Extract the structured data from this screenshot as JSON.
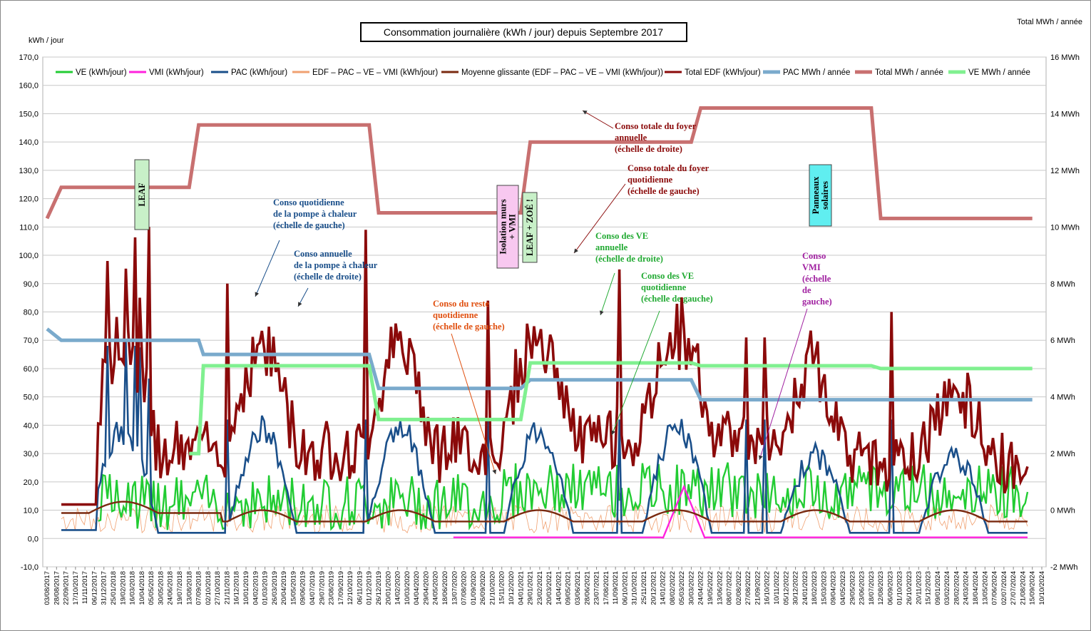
{
  "chart_data": {
    "type": "line",
    "title": "Consommation journalière (kWh / jour) depuis Septembre 2017",
    "ylabel_left": "kWh / jour",
    "ylabel_right": "Total MWh / année",
    "ylim_left": [
      -10,
      170
    ],
    "ylim_right": [
      -2,
      16
    ],
    "yticks_left": [
      "170,0",
      "160,0",
      "150,0",
      "140,0",
      "130,0",
      "120,0",
      "110,0",
      "100,0",
      "90,0",
      "80,0",
      "70,0",
      "60,0",
      "50,0",
      "40,0",
      "30,0",
      "20,0",
      "10,0",
      "0,0",
      "-10,0"
    ],
    "yticks_right": [
      "16 MWh",
      "14 MWh",
      "12 MWh",
      "10 MWh",
      "8 MWh",
      "6 MWh",
      "4 MWh",
      "2 MWh",
      "0 MWh",
      "-2 MWh"
    ],
    "x_dates": [
      "03/08/2017",
      "28/08/2017",
      "22/09/2017",
      "17/10/2017",
      "11/11/2017",
      "06/12/2017",
      "31/12/2017",
      "25/01/2018",
      "19/02/2018",
      "16/03/2018",
      "10/04/2018",
      "05/05/2018",
      "30/05/2018",
      "24/06/2018",
      "19/07/2018",
      "13/08/2018",
      "07/09/2018",
      "02/10/2018",
      "27/10/2018",
      "21/11/2018",
      "16/12/2018",
      "10/01/2019",
      "04/02/2019",
      "01/03/2019",
      "26/03/2019",
      "20/04/2019",
      "15/05/2019",
      "09/06/2019",
      "04/07/2019",
      "29/07/2019",
      "23/08/2019",
      "17/09/2019",
      "12/10/2019",
      "06/11/2019",
      "01/12/2019",
      "26/12/2019",
      "20/01/2020",
      "14/02/2020",
      "10/03/2020",
      "04/04/2020",
      "29/04/2020",
      "24/05/2020",
      "18/06/2020",
      "13/07/2020",
      "07/08/2020",
      "01/09/2020",
      "26/09/2020",
      "21/10/2020",
      "15/11/2020",
      "10/12/2020",
      "04/01/2021",
      "29/01/2021",
      "23/02/2021",
      "20/03/2021",
      "14/04/2021",
      "09/05/2021",
      "03/06/2021",
      "28/06/2021",
      "23/07/2021",
      "17/08/2021",
      "11/09/2021",
      "06/10/2021",
      "31/10/2021",
      "25/11/2021",
      "20/12/2021",
      "14/01/2022",
      "08/02/2022",
      "05/03/2022",
      "30/03/2022",
      "24/04/2022",
      "19/05/2022",
      "13/06/2022",
      "08/07/2022",
      "02/08/2022",
      "27/08/2022",
      "21/09/2022",
      "16/10/2022",
      "10/11/2022",
      "05/12/2022",
      "30/12/2022",
      "24/01/2023",
      "18/02/2023",
      "15/03/2023",
      "09/04/2023",
      "04/05/2023",
      "29/05/2023",
      "23/06/2023",
      "18/07/2023",
      "12/08/2023",
      "06/09/2023",
      "01/10/2023",
      "26/10/2023",
      "20/11/2023",
      "15/12/2023",
      "09/01/2024",
      "03/02/2024",
      "28/02/2024",
      "24/03/2024",
      "18/04/2024",
      "13/05/2024",
      "07/06/2024",
      "02/07/2024",
      "27/07/2024",
      "21/08/2024",
      "15/09/2024",
      "10/10/2024"
    ],
    "legend_position": "top",
    "grid": true,
    "series": [
      {
        "name": "VE (kWh/jour)",
        "color": "#22cc33",
        "axis": "left",
        "values": [
          null,
          null,
          null,
          null,
          null,
          null,
          null,
          null,
          null,
          null,
          null,
          null,
          null,
          null,
          null,
          null,
          null,
          null,
          null,
          null,
          null,
          null,
          null,
          null,
          null,
          null,
          null,
          null,
          null,
          null,
          null,
          null,
          null,
          null,
          null,
          null,
          null,
          null,
          null,
          null,
          null,
          null,
          null,
          null,
          null,
          null,
          null,
          null,
          null,
          null,
          null,
          null,
          null,
          null,
          null,
          null,
          null,
          null,
          null,
          null,
          null,
          null,
          null,
          null,
          null,
          null,
          null,
          null,
          null,
          null,
          null,
          null,
          null,
          null,
          null,
          null,
          null,
          null,
          null,
          null,
          null,
          null,
          null,
          null,
          null,
          null,
          null,
          null,
          null,
          null,
          null,
          null,
          null,
          null,
          null,
          null,
          null,
          null,
          null,
          null,
          null,
          null,
          null,
          null,
          null,
          null
        ]
      },
      {
        "name": "VMI  (kWh/jour)",
        "color": "#ff22dd",
        "axis": "left",
        "values": []
      },
      {
        "name": "PAC (kWh/jour)",
        "color": "#1a4f8a",
        "axis": "left",
        "values": []
      },
      {
        "name": "EDF – PAC – VE – VMI (kWh/jour)",
        "color": "#f0a070",
        "axis": "left",
        "values": []
      },
      {
        "name": "Moyenne glissante (EDF – PAC – VE – VMI (kWh/jour))",
        "color": "#7a2a10",
        "axis": "left",
        "values": []
      },
      {
        "name": "Total EDF (kWh/jour)",
        "color": "#8b0a0a",
        "axis": "left",
        "values": []
      },
      {
        "name": "PAC MWh / année",
        "color": "#7aaacc",
        "axis": "right",
        "values": []
      },
      {
        "name": "Total MWh / année",
        "color": "#c87070",
        "axis": "right",
        "values": []
      },
      {
        "name": "VE MWh / année",
        "color": "#80f090",
        "axis": "right",
        "values": []
      }
    ],
    "annual_steps": {
      "total": [
        [
          0,
          10.3
        ],
        [
          1.5,
          11.4
        ],
        [
          15,
          11.4
        ],
        [
          16,
          13.6
        ],
        [
          34,
          13.6
        ],
        [
          35,
          10.5
        ],
        [
          50,
          10.5
        ],
        [
          51,
          13.0
        ],
        [
          68,
          13.0
        ],
        [
          69,
          14.2
        ],
        [
          87,
          14.2
        ],
        [
          88,
          10.3
        ],
        [
          104,
          10.3
        ]
      ],
      "pac": [
        [
          0,
          6.4
        ],
        [
          1.5,
          6.0
        ],
        [
          16,
          6.0
        ],
        [
          16.5,
          5.5
        ],
        [
          34,
          5.5
        ],
        [
          35,
          4.3
        ],
        [
          50,
          4.3
        ],
        [
          51,
          4.6
        ],
        [
          68,
          4.6
        ],
        [
          69,
          3.9
        ],
        [
          104,
          3.9
        ]
      ],
      "ve": [
        [
          15,
          2.0
        ],
        [
          16,
          2.0
        ],
        [
          16.5,
          5.1
        ],
        [
          34,
          5.1
        ],
        [
          35,
          3.2
        ],
        [
          50,
          3.2
        ],
        [
          51,
          5.2
        ],
        [
          68,
          5.2
        ],
        [
          69,
          5.1
        ],
        [
          87,
          5.1
        ],
        [
          88,
          5.0
        ],
        [
          104,
          5.0
        ]
      ]
    },
    "annotations": [
      {
        "text": "LEAF",
        "kind": "box",
        "color": "#c8f0c8"
      },
      {
        "text": "Isolation murs + VMI",
        "kind": "box",
        "color": "#f8c8f0"
      },
      {
        "text": "LEAF + ZOÉ !",
        "kind": "box",
        "color": "#c8f0c8"
      },
      {
        "text": "Panneaux solaires",
        "kind": "box",
        "color": "#60eef0"
      },
      {
        "text": "Conso totale du foyer annuelle (échelle de droite)",
        "kind": "label",
        "color": "#8b0a0a"
      },
      {
        "text": "Conso totale du foyer quotidienne (échelle de gauche)",
        "kind": "label",
        "color": "#8b0a0a"
      },
      {
        "text": "Conso quotidienne de la pompe à chaleur (échelle de gauche)",
        "kind": "label",
        "color": "#1a4f8a"
      },
      {
        "text": "Conso annuelle de la pompe à chaleur (échelle de droite)",
        "kind": "label",
        "color": "#1a4f8a"
      },
      {
        "text": "Conso des VE annuelle (échelle de droite)",
        "kind": "label",
        "color": "#22aa33"
      },
      {
        "text": "Conso des VE quotidienne (échelle de gauche)",
        "kind": "label",
        "color": "#22aa33"
      },
      {
        "text": "Conso du reste quotidienne (échelle de gauche)",
        "kind": "label",
        "color": "#e05010"
      },
      {
        "text": "Conso VMI (échelle de gauche)",
        "kind": "label",
        "color": "#a020a0"
      }
    ]
  }
}
